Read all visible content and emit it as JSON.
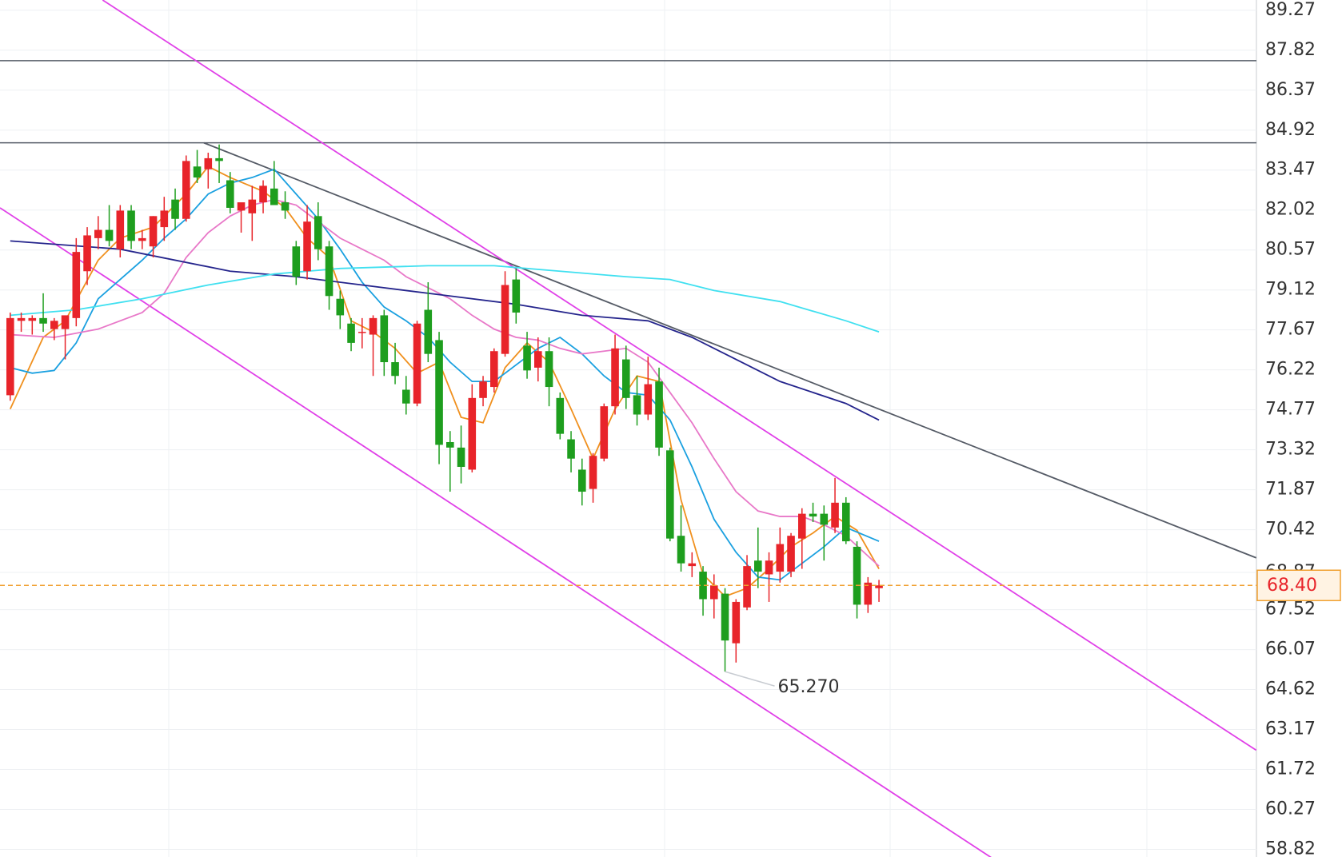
{
  "chart_data": {
    "type": "candlestick",
    "ylim": [
      58.82,
      89.27
    ],
    "yticks": [
      89.27,
      87.82,
      86.37,
      84.92,
      83.47,
      82.02,
      80.57,
      79.12,
      77.67,
      76.22,
      74.77,
      73.32,
      71.87,
      70.42,
      68.87,
      67.52,
      66.07,
      64.62,
      63.17,
      61.72,
      60.27,
      58.82
    ],
    "grid": true,
    "up_color": "#e8242a",
    "down_color": "#1e9e1e",
    "open": [
      75.3,
      78.0,
      78.0,
      78.1,
      77.7,
      77.7,
      78.1,
      79.8,
      81.0,
      81.3,
      80.6,
      82.0,
      80.9,
      80.7,
      81.4,
      82.4,
      81.7,
      83.6,
      83.5,
      83.9,
      83.1,
      82.0,
      81.9,
      82.3,
      82.8,
      82.3,
      80.7,
      79.8,
      81.8,
      80.7,
      78.8,
      77.9,
      77.6,
      77.5,
      78.2,
      76.5,
      75.5,
      75.0,
      78.4,
      77.3,
      73.6,
      73.4,
      72.6,
      75.2,
      75.6,
      76.8,
      79.5,
      77.1,
      76.3,
      76.9,
      75.2,
      73.7,
      72.6,
      71.9,
      73.0,
      74.9,
      76.6,
      75.3,
      74.6,
      75.8,
      73.3,
      70.2,
      69.1,
      68.9,
      67.9,
      68.1,
      66.3,
      67.6,
      69.3,
      68.8,
      68.9,
      68.9,
      70.1,
      71.0,
      71.0,
      70.5,
      71.4,
      69.8,
      67.7,
      68.3
    ],
    "high": [
      78.3,
      78.3,
      78.2,
      79.0,
      78.1,
      78.1,
      81.0,
      81.4,
      81.8,
      82.2,
      82.2,
      82.2,
      81.3,
      81.8,
      82.5,
      82.8,
      84.0,
      84.2,
      84.1,
      84.4,
      83.4,
      82.2,
      82.9,
      83.1,
      83.8,
      82.7,
      80.9,
      82.2,
      82.3,
      80.9,
      79.1,
      78.1,
      78.1,
      78.2,
      78.4,
      77.2,
      76.0,
      78.0,
      79.4,
      77.6,
      74.0,
      74.2,
      75.7,
      76.0,
      77.0,
      79.8,
      79.9,
      77.6,
      77.4,
      77.4,
      75.4,
      74.0,
      73.0,
      73.2,
      75.0,
      77.5,
      77.1,
      76.0,
      76.7,
      76.3,
      73.4,
      71.3,
      69.6,
      69.1,
      68.8,
      68.3,
      67.9,
      69.5,
      70.5,
      69.6,
      70.5,
      70.3,
      71.2,
      71.4,
      71.3,
      72.3,
      71.6,
      70.0,
      68.7,
      68.6
    ],
    "low": [
      75.1,
      77.6,
      77.5,
      77.6,
      77.3,
      76.6,
      77.8,
      79.3,
      80.6,
      80.7,
      80.3,
      80.6,
      80.6,
      80.3,
      80.9,
      81.3,
      81.6,
      83.0,
      82.8,
      83.0,
      81.9,
      81.2,
      80.9,
      81.9,
      82.3,
      81.7,
      79.3,
      79.5,
      80.2,
      78.4,
      77.7,
      76.9,
      77.0,
      76.0,
      76.0,
      75.7,
      74.6,
      74.9,
      76.5,
      72.8,
      71.8,
      72.1,
      72.5,
      74.9,
      75.4,
      76.7,
      77.9,
      75.9,
      75.8,
      74.9,
      73.7,
      72.5,
      71.3,
      71.4,
      72.9,
      74.6,
      74.8,
      74.2,
      74.4,
      73.1,
      70.0,
      68.9,
      68.7,
      67.3,
      67.2,
      65.27,
      65.6,
      67.5,
      68.3,
      67.8,
      68.5,
      68.7,
      69.0,
      70.7,
      69.3,
      70.3,
      69.9,
      67.2,
      67.4,
      67.8
    ],
    "close": [
      78.1,
      78.1,
      78.1,
      77.9,
      78.0,
      78.2,
      80.5,
      81.1,
      81.3,
      80.9,
      82.0,
      80.9,
      81.0,
      81.8,
      82.0,
      81.7,
      83.8,
      83.2,
      83.9,
      83.8,
      82.1,
      82.3,
      82.4,
      82.9,
      82.2,
      82.0,
      79.6,
      81.6,
      80.6,
      78.9,
      78.2,
      77.2,
      77.6,
      78.1,
      76.5,
      76.0,
      75.0,
      77.9,
      76.8,
      73.5,
      73.4,
      72.7,
      75.2,
      75.8,
      76.9,
      79.3,
      78.3,
      76.2,
      76.9,
      75.6,
      73.9,
      73.0,
      71.8,
      73.1,
      74.9,
      77.0,
      75.2,
      74.6,
      75.7,
      73.4,
      70.1,
      69.2,
      69.2,
      67.9,
      68.4,
      66.4,
      67.8,
      69.1,
      68.9,
      69.3,
      69.9,
      70.2,
      71.0,
      70.9,
      70.6,
      71.4,
      70.0,
      67.7,
      68.5,
      68.4
    ],
    "moving_averages": [
      {
        "color": "#f0901e",
        "x": [
          0,
          3,
          5,
          8,
          10,
          13,
          16,
          18,
          20,
          23,
          25,
          27,
          29,
          31,
          33,
          35,
          37,
          39,
          41,
          43,
          45,
          47,
          49,
          51,
          53,
          55,
          57,
          59,
          61,
          63,
          65,
          67,
          69,
          71,
          73,
          75,
          77,
          79
        ],
        "values": [
          74.8,
          77.4,
          78.0,
          80.2,
          81.0,
          81.4,
          82.6,
          83.6,
          83.2,
          82.7,
          82.1,
          81.0,
          80.3,
          78.0,
          77.6,
          77.0,
          76.1,
          76.5,
          74.5,
          74.3,
          76.3,
          77.2,
          76.5,
          74.8,
          73.0,
          74.8,
          76.0,
          75.8,
          71.5,
          68.8,
          68.0,
          68.3,
          69.0,
          69.8,
          70.3,
          70.9,
          70.4,
          69.0
        ]
      },
      {
        "color": "#1aa0e0",
        "x": [
          0,
          2,
          4,
          6,
          8,
          10,
          12,
          14,
          16,
          18,
          20,
          22,
          24,
          26,
          28,
          30,
          32,
          34,
          36,
          38,
          40,
          42,
          44,
          46,
          48,
          50,
          52,
          54,
          56,
          58,
          60,
          62,
          64,
          66,
          68,
          70,
          72,
          74,
          76,
          79
        ],
        "values": [
          76.3,
          76.1,
          76.2,
          77.2,
          78.8,
          79.5,
          80.2,
          81.0,
          81.7,
          82.6,
          83.0,
          83.2,
          83.5,
          82.6,
          81.7,
          80.6,
          79.4,
          78.5,
          78.0,
          77.4,
          76.5,
          75.8,
          75.8,
          76.4,
          77.0,
          77.4,
          76.8,
          76.0,
          75.4,
          75.3,
          74.4,
          72.7,
          70.8,
          69.6,
          68.7,
          68.6,
          69.2,
          69.8,
          70.5,
          70.0
        ]
      },
      {
        "color": "#e878c8",
        "x": [
          0,
          4,
          8,
          12,
          14,
          16,
          18,
          20,
          22,
          24,
          26,
          28,
          30,
          32,
          34,
          36,
          38,
          40,
          42,
          44,
          46,
          48,
          50,
          52,
          54,
          56,
          58,
          60,
          62,
          64,
          66,
          68,
          70,
          72,
          74,
          76,
          79
        ],
        "values": [
          77.5,
          77.4,
          77.7,
          78.3,
          79.0,
          80.3,
          81.2,
          81.8,
          82.2,
          82.4,
          82.2,
          81.6,
          81.0,
          80.6,
          80.2,
          79.6,
          79.2,
          78.8,
          78.2,
          77.7,
          77.4,
          77.3,
          77.0,
          76.8,
          76.9,
          77.0,
          76.5,
          75.4,
          74.3,
          73.0,
          71.8,
          71.1,
          70.9,
          70.9,
          70.6,
          70.2,
          69.1
        ]
      },
      {
        "color": "#24248c",
        "x": [
          0,
          10,
          20,
          26,
          32,
          40,
          46,
          52,
          58,
          62,
          66,
          70,
          76,
          79
        ],
        "values": [
          80.9,
          80.6,
          79.8,
          79.6,
          79.3,
          78.9,
          78.6,
          78.2,
          78.0,
          77.4,
          76.6,
          75.8,
          75.0,
          74.4
        ]
      },
      {
        "color": "#40e0f0",
        "x": [
          0,
          6,
          12,
          18,
          24,
          30,
          38,
          44,
          50,
          56,
          60,
          64,
          70,
          76,
          79
        ],
        "values": [
          78.2,
          78.4,
          78.8,
          79.3,
          79.7,
          79.9,
          80.0,
          80.0,
          79.8,
          79.6,
          79.5,
          79.1,
          78.7,
          78.0,
          77.6
        ]
      }
    ],
    "levels": [
      87.44,
      84.46
    ],
    "trend_lines": [
      {
        "color": "#555b66",
        "points": [
          [
            17.6,
            84.46
          ],
          [
            113.3,
            69.4
          ]
        ]
      },
      {
        "color": "#e040e8",
        "points": [
          [
            8.4,
            89.64
          ],
          [
            113.3,
            62.42
          ]
        ]
      },
      {
        "color": "#e040e8",
        "points": [
          [
            -0.93,
            82.1
          ],
          [
            89.3,
            58.5
          ]
        ]
      }
    ],
    "last_price": {
      "value": 68.4,
      "label": "68.40"
    },
    "low_annotation": {
      "value": 65.27,
      "label": "65.270"
    }
  }
}
